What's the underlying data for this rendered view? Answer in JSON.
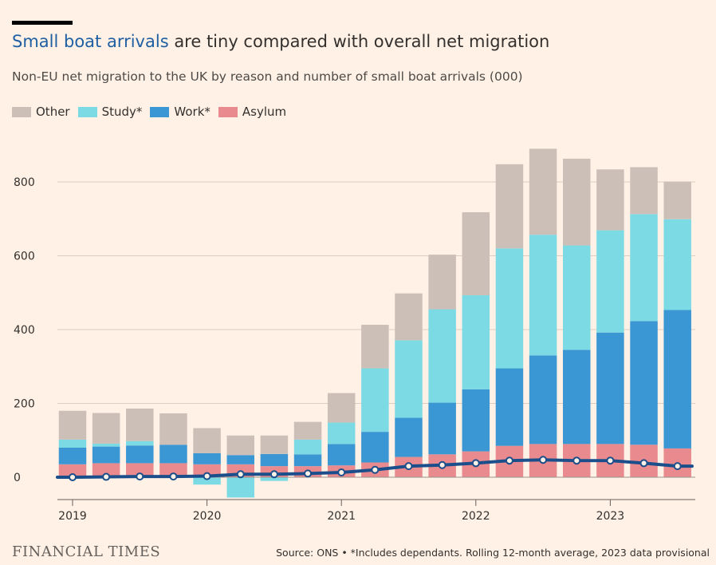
{
  "header": {
    "title_highlight": "Small boat arrivals",
    "title_rest": " are tiny compared with overall net migration",
    "subtitle": "Non-EU net migration to the UK by reason and number of small boat arrivals (000)"
  },
  "legend": [
    {
      "label": "Other",
      "color": "#ccbfb8"
    },
    {
      "label": "Study*",
      "color": "#7cdae4"
    },
    {
      "label": "Work*",
      "color": "#3a97d4"
    },
    {
      "label": "Asylum",
      "color": "#e88a8e"
    }
  ],
  "footer": {
    "brand": "FINANCIAL TIMES",
    "source": "Source: ONS • *Includes dependants. Rolling 12-month average, 2023 data provisional"
  },
  "chart_data": {
    "type": "bar",
    "stacked": true,
    "categories": [
      "2019 Q1",
      "2019 Q2",
      "2019 Q3",
      "2019 Q4",
      "2020 Q1",
      "2020 Q2",
      "2020 Q3",
      "2020 Q4",
      "2021 Q1",
      "2021 Q2",
      "2021 Q3",
      "2021 Q4",
      "2022 Q1",
      "2022 Q2",
      "2022 Q3",
      "2022 Q4",
      "2023 Q1",
      "2023 Q2",
      "2023 Q3"
    ],
    "series": [
      {
        "name": "Asylum",
        "color": "#e88a8e",
        "values": [
          35,
          38,
          38,
          38,
          35,
          35,
          30,
          30,
          32,
          40,
          55,
          62,
          70,
          85,
          90,
          90,
          90,
          88,
          78
        ]
      },
      {
        "name": "Work*",
        "color": "#3a97d4",
        "values": [
          45,
          45,
          48,
          50,
          30,
          25,
          33,
          32,
          58,
          83,
          106,
          140,
          168,
          210,
          240,
          255,
          302,
          335,
          375
        ]
      },
      {
        "name": "Study*",
        "color": "#7cdae4",
        "values": [
          22,
          8,
          12,
          0,
          -20,
          -55,
          -10,
          40,
          58,
          172,
          210,
          253,
          255,
          325,
          327,
          283,
          277,
          290,
          246
        ]
      },
      {
        "name": "Other",
        "color": "#ccbfb8",
        "values": [
          78,
          83,
          88,
          85,
          68,
          53,
          50,
          48,
          80,
          118,
          127,
          148,
          225,
          228,
          233,
          235,
          165,
          127,
          102
        ]
      }
    ],
    "line": {
      "name": "Small boat arrivals",
      "color": "#1a4f8b",
      "values": [
        0,
        1,
        2,
        2,
        3,
        8,
        8,
        10,
        13,
        20,
        30,
        33,
        38,
        45,
        47,
        45,
        45,
        38,
        30
      ]
    },
    "x_ticks": [
      "2019",
      "2020",
      "2021",
      "2022",
      "2023"
    ],
    "y_ticks": [
      "0",
      "200",
      "400",
      "600",
      "800"
    ],
    "ylim": [
      -55,
      900
    ],
    "grid": true
  }
}
